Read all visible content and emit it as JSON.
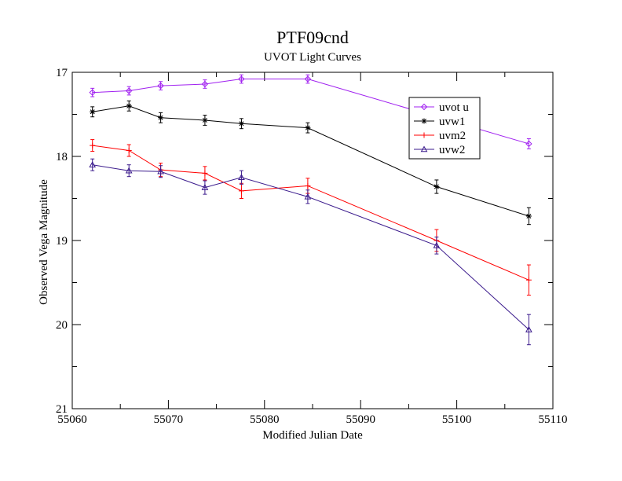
{
  "chart_data": {
    "type": "line",
    "title": "PTF09cnd",
    "subtitle": "UVOT Light Curves",
    "xlabel": "Modified Julian Date",
    "ylabel": "Observed Vega Magnitude",
    "xlim": [
      55060,
      55110
    ],
    "ylim": [
      17,
      21
    ],
    "y_inverted": true,
    "x_ticks": [
      55060,
      55070,
      55080,
      55090,
      55100,
      55110
    ],
    "x_tick_labels": [
      "55060",
      "55070",
      "55080",
      "55090",
      "55100",
      "55110"
    ],
    "y_ticks": [
      17,
      18,
      19,
      20,
      21
    ],
    "y_tick_labels": [
      "17",
      "18",
      "19",
      "20",
      "21"
    ],
    "grid": false,
    "legend_position": "top-right",
    "series": [
      {
        "name": "uvot u",
        "color": "#a020f0",
        "marker": "diamond",
        "x": [
          55062.1,
          55065.9,
          55069.2,
          55073.8,
          55077.6,
          55084.5,
          55107.5
        ],
        "y": [
          17.24,
          17.22,
          17.16,
          17.14,
          17.08,
          17.08,
          17.85
        ],
        "err": [
          0.05,
          0.05,
          0.05,
          0.05,
          0.05,
          0.05,
          0.06
        ]
      },
      {
        "name": "uvw1",
        "color": "#000000",
        "marker": "star",
        "x": [
          55062.1,
          55065.9,
          55069.2,
          55073.8,
          55077.6,
          55084.5,
          55097.9,
          55107.5
        ],
        "y": [
          17.47,
          17.4,
          17.54,
          17.57,
          17.61,
          17.66,
          18.36,
          18.71
        ],
        "err": [
          0.06,
          0.06,
          0.06,
          0.06,
          0.06,
          0.06,
          0.08,
          0.1
        ]
      },
      {
        "name": "uvm2",
        "color": "#ff0000",
        "marker": "plus",
        "x": [
          55062.1,
          55065.9,
          55069.2,
          55073.8,
          55077.6,
          55084.5,
          55097.9,
          55107.5
        ],
        "y": [
          17.87,
          17.93,
          18.16,
          18.2,
          18.41,
          18.35,
          19.0,
          19.47
        ],
        "err": [
          0.07,
          0.07,
          0.08,
          0.08,
          0.09,
          0.09,
          0.13,
          0.18
        ]
      },
      {
        "name": "uvw2",
        "color": "#3a1a8c",
        "marker": "triangle",
        "x": [
          55062.1,
          55065.9,
          55069.2,
          55073.8,
          55077.6,
          55084.5,
          55097.9,
          55107.5
        ],
        "y": [
          18.1,
          18.17,
          18.18,
          18.37,
          18.25,
          18.48,
          19.06,
          20.06
        ],
        "err": [
          0.07,
          0.07,
          0.07,
          0.08,
          0.08,
          0.08,
          0.1,
          0.18
        ]
      }
    ]
  }
}
